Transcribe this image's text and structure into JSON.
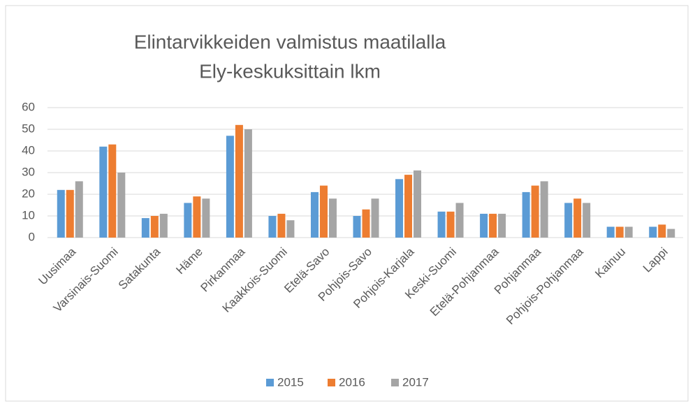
{
  "chart_data": {
    "type": "bar",
    "title": [
      "Elintarvikkeiden valmistus maatilalla",
      "Ely-keskuksittain lkm"
    ],
    "categories": [
      "Uusimaa",
      "Varsinais-Suomi",
      "Satakunta",
      "Häme",
      "Pirkanmaa",
      "Kaakkois-Suomi",
      "Etelä-Savo",
      "Pohjois-Savo",
      "Pohjois-Karjala",
      "Keski-Suomi",
      "Etelä-Pohjanmaa",
      "Pohjanmaa",
      "Pohjois-Pohjanmaa",
      "Kainuu",
      "Lappi"
    ],
    "series": [
      {
        "name": "2015",
        "color": "#5b9bd5",
        "values": [
          22,
          42,
          9,
          16,
          47,
          10,
          21,
          10,
          27,
          12,
          11,
          21,
          16,
          5,
          5
        ]
      },
      {
        "name": "2016",
        "color": "#ed7d31",
        "values": [
          22,
          43,
          10,
          19,
          52,
          11,
          24,
          13,
          29,
          12,
          11,
          24,
          18,
          5,
          6
        ]
      },
      {
        "name": "2017",
        "color": "#a5a5a5",
        "values": [
          26,
          30,
          11,
          18,
          50,
          8,
          18,
          18,
          31,
          16,
          11,
          26,
          16,
          5,
          4
        ]
      }
    ],
    "ylim": [
      0,
      60
    ],
    "yticks": [
      0,
      10,
      20,
      30,
      40,
      50,
      60
    ],
    "grid": true,
    "legend": "bottom"
  }
}
